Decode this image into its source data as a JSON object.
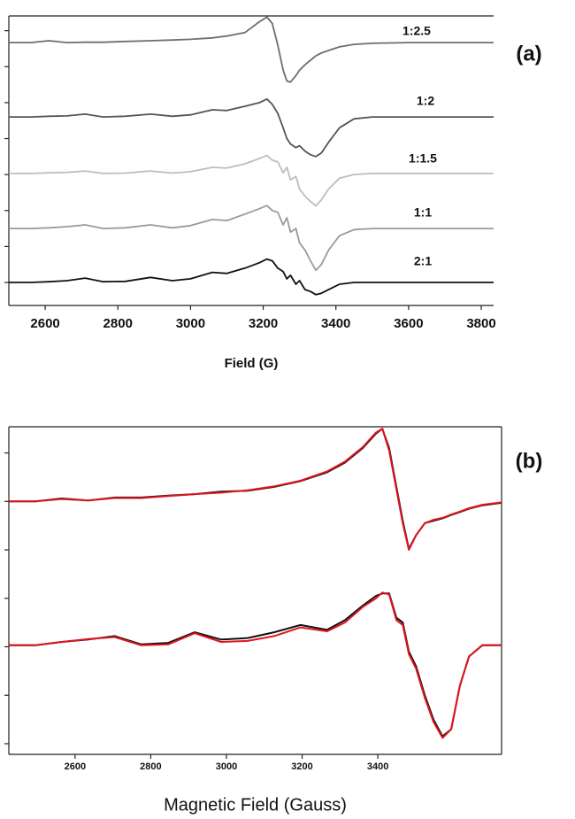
{
  "chart_data": [
    {
      "type": "line",
      "panel_label": "(a)",
      "x_label": "Field (G)",
      "x": [
        2500,
        2560,
        2610,
        2660,
        2710,
        2760,
        2820,
        2890,
        2950,
        3000,
        3060,
        3100,
        3150,
        3190,
        3210,
        3225,
        3240,
        3255,
        3265,
        3275,
        3290,
        3300,
        3315,
        3330,
        3345,
        3360,
        3380,
        3410,
        3450,
        3500,
        3600,
        3700,
        3834
      ],
      "xlim": [
        2500,
        3834
      ],
      "xticks": [
        2600,
        2800,
        3000,
        3200,
        3400,
        3600,
        3800
      ],
      "ylim": [
        -0.64,
        7.41
      ],
      "yticks": [
        0,
        1,
        2,
        3,
        4,
        5,
        6,
        7
      ],
      "series": [
        {
          "name": "1:2.5",
          "color": "#6e6e6e",
          "values": [
            6.67,
            6.67,
            6.72,
            6.67,
            6.68,
            6.68,
            6.7,
            6.72,
            6.74,
            6.76,
            6.8,
            6.85,
            6.95,
            7.25,
            7.38,
            7.2,
            6.6,
            5.9,
            5.6,
            5.57,
            5.75,
            5.9,
            6.05,
            6.18,
            6.3,
            6.38,
            6.45,
            6.55,
            6.62,
            6.65,
            6.67,
            6.67,
            6.67
          ]
        },
        {
          "name": "1:2",
          "color": "#555555",
          "values": [
            4.6,
            4.6,
            4.62,
            4.63,
            4.68,
            4.6,
            4.62,
            4.68,
            4.62,
            4.66,
            4.8,
            4.78,
            4.9,
            5.0,
            5.1,
            4.95,
            4.7,
            4.3,
            4.0,
            3.85,
            3.75,
            3.8,
            3.65,
            3.55,
            3.5,
            3.6,
            3.9,
            4.3,
            4.55,
            4.6,
            4.6,
            4.6,
            4.6
          ]
        },
        {
          "name": "1:1.5",
          "color": "#bdbdbd",
          "values": [
            3.03,
            3.03,
            3.05,
            3.06,
            3.1,
            3.03,
            3.04,
            3.1,
            3.04,
            3.08,
            3.2,
            3.18,
            3.3,
            3.45,
            3.53,
            3.4,
            3.35,
            3.05,
            3.2,
            2.85,
            2.95,
            2.6,
            2.4,
            2.25,
            2.13,
            2.3,
            2.6,
            2.9,
            3.0,
            3.03,
            3.03,
            3.03,
            3.03
          ]
        },
        {
          "name": "1:1",
          "color": "#9a9a9a",
          "values": [
            1.5,
            1.5,
            1.52,
            1.55,
            1.6,
            1.5,
            1.52,
            1.6,
            1.52,
            1.58,
            1.75,
            1.72,
            1.9,
            2.05,
            2.14,
            2.0,
            1.95,
            1.6,
            1.8,
            1.4,
            1.5,
            1.1,
            0.9,
            0.6,
            0.34,
            0.5,
            0.9,
            1.3,
            1.47,
            1.5,
            1.5,
            1.5,
            1.5
          ]
        },
        {
          "name": "2:1",
          "color": "#111111",
          "values": [
            0,
            0,
            0.02,
            0.05,
            0.12,
            0.02,
            0.03,
            0.14,
            0.05,
            0.1,
            0.28,
            0.25,
            0.4,
            0.55,
            0.65,
            0.6,
            0.4,
            0.3,
            0.1,
            0.2,
            -0.05,
            0.05,
            -0.2,
            -0.25,
            -0.34,
            -0.3,
            -0.2,
            -0.05,
            0,
            0,
            0,
            0,
            0
          ]
        }
      ]
    },
    {
      "type": "line",
      "panel_label": "(b)",
      "x_label": "Magnetic Field (Gauss)",
      "x": [
        2425,
        2495,
        2565,
        2635,
        2705,
        2775,
        2846,
        2916,
        2986,
        3056,
        3126,
        3196,
        3266,
        3313,
        3360,
        3395,
        3412,
        3430,
        3449,
        3466,
        3482,
        3501,
        3524,
        3547,
        3571,
        3594,
        3617,
        3641,
        3676,
        3727
      ],
      "xlim": [
        2425,
        3727
      ],
      "xticks": [
        2600,
        2800,
        3000,
        3200,
        3400
      ],
      "ylim": [
        -0.22,
        6.54
      ],
      "yticks": [
        0,
        1,
        2,
        3,
        4,
        5,
        6
      ],
      "series": [
        {
          "color": "#111111",
          "values": [
            5.0,
            5.0,
            5.06,
            5.02,
            5.08,
            5.08,
            5.12,
            5.15,
            5.2,
            5.22,
            5.3,
            5.42,
            5.6,
            5.8,
            6.1,
            6.4,
            6.5,
            6.1,
            5.3,
            4.6,
            4.02,
            4.3,
            4.55,
            4.6,
            4.65,
            4.72,
            4.78,
            4.85,
            4.92,
            4.97
          ]
        },
        {
          "color": "#e0141e",
          "values": [
            5.0,
            5.0,
            5.05,
            5.02,
            5.07,
            5.07,
            5.11,
            5.15,
            5.18,
            5.23,
            5.31,
            5.43,
            5.62,
            5.82,
            6.12,
            6.42,
            6.5,
            6.05,
            5.25,
            4.55,
            4.0,
            4.3,
            4.55,
            4.62,
            4.66,
            4.73,
            4.79,
            4.86,
            4.93,
            4.98
          ]
        },
        {
          "color": "#111111",
          "values": [
            2.03,
            2.03,
            2.1,
            2.15,
            2.22,
            2.05,
            2.08,
            2.3,
            2.15,
            2.18,
            2.3,
            2.45,
            2.35,
            2.55,
            2.85,
            3.05,
            3.1,
            3.1,
            2.6,
            2.5,
            1.9,
            1.6,
            1.0,
            0.5,
            0.15,
            0.3,
            1.2,
            1.8,
            2.03,
            2.03
          ]
        },
        {
          "color": "#e0141e",
          "values": [
            2.03,
            2.03,
            2.1,
            2.16,
            2.2,
            2.03,
            2.05,
            2.28,
            2.1,
            2.12,
            2.22,
            2.4,
            2.32,
            2.5,
            2.82,
            3.0,
            3.12,
            3.08,
            2.55,
            2.45,
            1.85,
            1.55,
            0.95,
            0.45,
            0.12,
            0.3,
            1.2,
            1.8,
            2.03,
            2.03
          ]
        }
      ]
    }
  ]
}
